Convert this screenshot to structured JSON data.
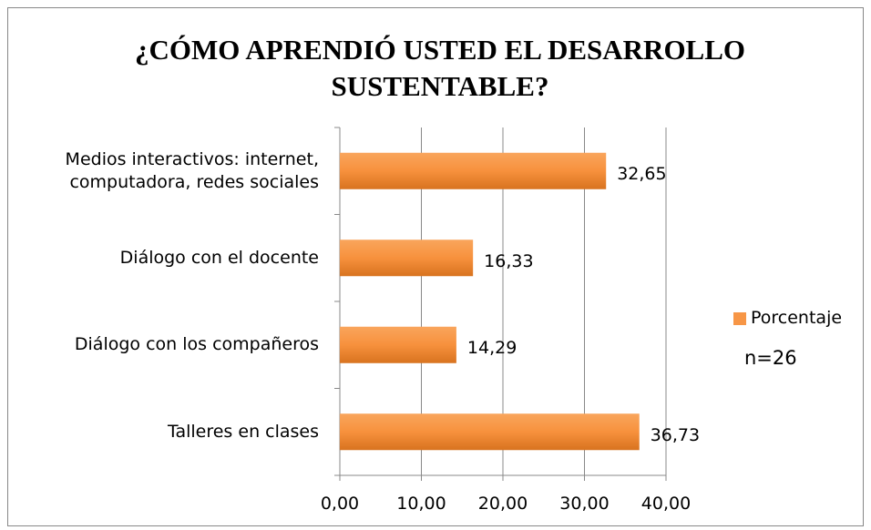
{
  "chart_data": {
    "type": "bar",
    "orientation": "horizontal",
    "title": "¿CÓMO APRENDIÓ USTED EL DESARROLLO SUSTENTABLE?",
    "categories": [
      "Medios interactivos: internet, computadora, redes sociales",
      "Diálogo con el docente",
      "Diálogo con los compañeros",
      "Talleres en clases"
    ],
    "series": [
      {
        "name": "Porcentaje",
        "color": "#f79646",
        "values": [
          32.65,
          16.33,
          14.29,
          36.73
        ],
        "value_labels": [
          "32,65",
          "16,33",
          "14,29",
          "36,73"
        ]
      }
    ],
    "xlim": [
      0,
      40
    ],
    "xticks": [
      {
        "value": 0,
        "label": "0,00"
      },
      {
        "value": 10,
        "label": "10,00"
      },
      {
        "value": 20,
        "label": "20,00"
      },
      {
        "value": 30,
        "label": "30,00"
      },
      {
        "value": 40,
        "label": "40,00"
      }
    ],
    "grid": true,
    "legend": "right",
    "annotation": "n=26"
  }
}
